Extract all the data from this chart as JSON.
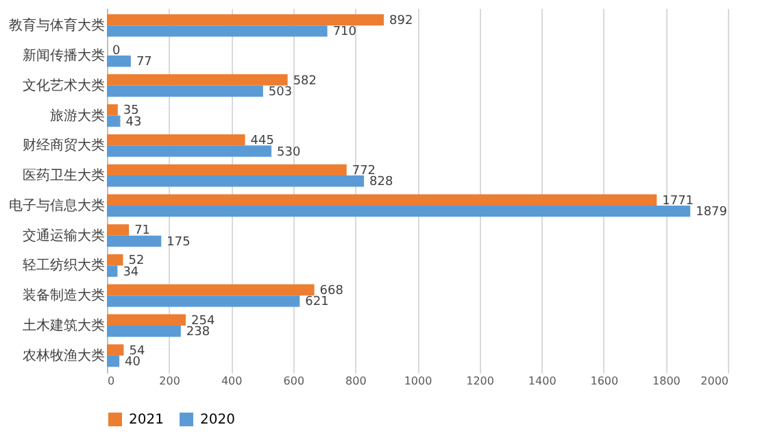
{
  "chart_data": {
    "type": "bar",
    "orientation": "horizontal",
    "categories": [
      "教育与体育大类",
      "新闻传播大类",
      "文化艺术大类",
      "旅游大类",
      "财经商贸大类",
      "医药卫生大类",
      "电子与信息大类",
      "交通运输大类",
      "轻工纺织大类",
      "装备制造大类",
      "土木建筑大类",
      "农林牧渔大类"
    ],
    "series": [
      {
        "name": "2021",
        "color": "#ed7d31",
        "values": [
          892,
          0,
          582,
          35,
          445,
          772,
          1771,
          71,
          52,
          668,
          254,
          54
        ]
      },
      {
        "name": "2020",
        "color": "#5b9bd5",
        "values": [
          710,
          77,
          503,
          43,
          530,
          828,
          1879,
          175,
          34,
          621,
          238,
          40
        ]
      }
    ],
    "xlim": [
      0,
      2000
    ],
    "xticks": [
      0,
      200,
      400,
      600,
      800,
      1000,
      1200,
      1400,
      1600,
      1800,
      2000
    ],
    "grid": "x",
    "legend": "bottom",
    "data_labels": true
  }
}
